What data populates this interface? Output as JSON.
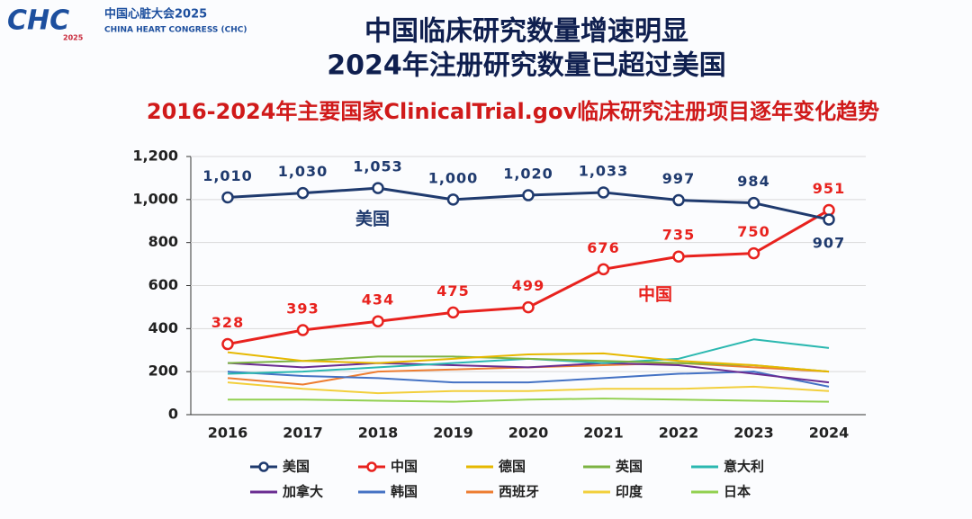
{
  "header": {
    "logo": "CHC",
    "logo_year": "2025",
    "org_cn": "中国心脏大会2025",
    "org_en": "CHINA HEART CONGRESS (CHC)"
  },
  "headline": [
    "中国临床研究数量增速明显",
    "2024年注册研究数量已超过美国"
  ],
  "chart_data": {
    "type": "line",
    "title": "2016-2024年主要国家ClinicalTrial.gov临床研究注册项目逐年变化趋势",
    "categories": [
      "2016",
      "2017",
      "2018",
      "2019",
      "2020",
      "2021",
      "2022",
      "2023",
      "2024"
    ],
    "ylim": [
      0,
      1200
    ],
    "yticks": [
      0,
      200,
      400,
      600,
      800,
      {
        "value": 1000,
        "label": "1,000"
      },
      {
        "value": 1200,
        "label": "1,200"
      }
    ],
    "grid": true,
    "annotations": [
      "美国",
      "中国"
    ],
    "series": [
      {
        "name": "美国",
        "color": "#1f3a6e",
        "marker": true,
        "values": [
          1010,
          1030,
          1053,
          1000,
          1020,
          1033,
          997,
          984,
          907
        ],
        "value_labels": [
          "1,010",
          "1,030",
          "1,053",
          "1,000",
          "1,020",
          "1,033",
          "997",
          "984",
          "907"
        ]
      },
      {
        "name": "中国",
        "color": "#e8221e",
        "marker": true,
        "values": [
          328,
          393,
          434,
          475,
          499,
          676,
          735,
          750,
          951
        ],
        "value_labels": [
          "328",
          "393",
          "434",
          "475",
          "499",
          "676",
          "735",
          "750",
          "951"
        ]
      },
      {
        "name": "德国",
        "color": "#e6b800",
        "values": [
          290,
          250,
          240,
          260,
          280,
          285,
          250,
          230,
          200
        ]
      },
      {
        "name": "英国",
        "color": "#7cb342",
        "values": [
          240,
          250,
          270,
          270,
          260,
          250,
          240,
          230,
          200
        ]
      },
      {
        "name": "意大利",
        "color": "#2bb8b0",
        "values": [
          190,
          200,
          220,
          240,
          260,
          240,
          260,
          350,
          310
        ]
      },
      {
        "name": "加拿大",
        "color": "#6a2c91",
        "values": [
          240,
          220,
          240,
          230,
          220,
          240,
          230,
          190,
          150
        ]
      },
      {
        "name": "韩国",
        "color": "#4472c4",
        "values": [
          200,
          180,
          170,
          150,
          150,
          170,
          190,
          200,
          130
        ]
      },
      {
        "name": "西班牙",
        "color": "#ed7d31",
        "values": [
          170,
          140,
          200,
          210,
          220,
          230,
          240,
          220,
          200
        ]
      },
      {
        "name": "印度",
        "color": "#f2cf3c",
        "values": [
          150,
          120,
          100,
          110,
          110,
          120,
          120,
          130,
          110
        ]
      },
      {
        "name": "日本",
        "color": "#92d050",
        "values": [
          70,
          70,
          65,
          60,
          70,
          75,
          70,
          65,
          60
        ]
      }
    ]
  }
}
